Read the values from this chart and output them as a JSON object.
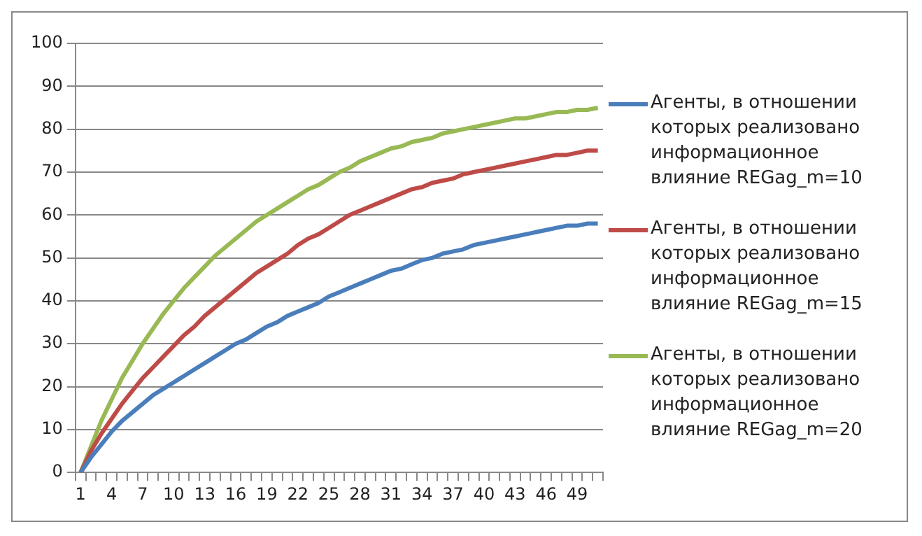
{
  "chart_data": {
    "type": "line",
    "categories": [
      "1",
      null,
      null,
      "4",
      null,
      null,
      "7",
      null,
      null,
      "10",
      null,
      null,
      "13",
      null,
      null,
      "16",
      null,
      null,
      "19",
      null,
      null,
      "22",
      null,
      null,
      "25",
      null,
      null,
      "28",
      null,
      null,
      "31",
      null,
      null,
      "34",
      null,
      null,
      "37",
      null,
      null,
      "40",
      null,
      null,
      "43",
      null,
      null,
      "46",
      null,
      null,
      "49",
      null,
      null
    ],
    "series": [
      {
        "name": "Агенты, в отношении которых реализовано информационное влияние REGag_m=10",
        "color": "#4a7ebb",
        "values": [
          0,
          3.5,
          6.5,
          9.5,
          12,
          14,
          16,
          18,
          19.5,
          21,
          22.5,
          24,
          25.5,
          27,
          28.5,
          30,
          31,
          32.5,
          34,
          35,
          36.5,
          37.5,
          38.5,
          39.5,
          41,
          42,
          43,
          44,
          45,
          46,
          47,
          47.5,
          48.5,
          49.5,
          50,
          51,
          51.5,
          52,
          53,
          53.5,
          54,
          54.5,
          55,
          55.5,
          56,
          56.5,
          57,
          57.5,
          57.5,
          58,
          58
        ]
      },
      {
        "name": "Агенты, в отношении которых реализовано информационное влияние REGag_m=15",
        "color": "#be4b48",
        "values": [
          0,
          5,
          9,
          12.5,
          16,
          19,
          22,
          24.5,
          27,
          29.5,
          32,
          34,
          36.5,
          38.5,
          40.5,
          42.5,
          44.5,
          46.5,
          48,
          49.5,
          51,
          53,
          54.5,
          55.5,
          57,
          58.5,
          60,
          61,
          62,
          63,
          64,
          65,
          66,
          66.5,
          67.5,
          68,
          68.5,
          69.5,
          70,
          70.5,
          71,
          71.5,
          72,
          72.5,
          73,
          73.5,
          74,
          74,
          74.5,
          75,
          75
        ]
      },
      {
        "name": "Агенты, в отношении которых реализовано информационное влияние REGag_m=20",
        "color": "#98b954",
        "values": [
          0,
          6,
          12,
          17,
          22,
          26,
          30,
          33.5,
          37,
          40,
          43,
          45.5,
          48,
          50.5,
          52.5,
          54.5,
          56.5,
          58.5,
          60,
          61.5,
          63,
          64.5,
          66,
          67,
          68.5,
          70,
          71,
          72.5,
          73.5,
          74.5,
          75.5,
          76,
          77,
          77.5,
          78,
          79,
          79.5,
          80,
          80.5,
          81,
          81.5,
          82,
          82.5,
          82.5,
          83,
          83.5,
          84,
          84,
          84.5,
          84.5,
          85
        ]
      }
    ],
    "ylim": [
      0,
      100
    ],
    "yticks": [
      0,
      10,
      20,
      30,
      40,
      50,
      60,
      70,
      80,
      90,
      100
    ],
    "grid": "y",
    "legend": "right",
    "marker": "none",
    "line_style": "solid"
  }
}
